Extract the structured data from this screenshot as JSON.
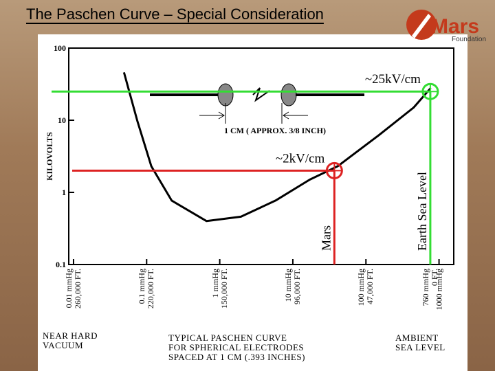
{
  "title": "The Paschen Curve – Special Consideration",
  "logo": {
    "name": "Mars",
    "subtitle": "Foundation"
  },
  "chart_data": {
    "type": "line",
    "ylabel": "KILOVOLTS",
    "xscale": "log",
    "yscale": "log",
    "xlim": [
      0.0086,
      1590
    ],
    "ylim": [
      0.1,
      100
    ],
    "yticks": [
      100,
      10,
      1,
      0.1
    ],
    "xticks": [
      {
        "value": 0.01,
        "label": "0.01 mmHg\n260,000 FT."
      },
      {
        "value": 0.1,
        "label": "0.1 mmHg\n220,000 FT."
      },
      {
        "value": 1,
        "label": "1 mmHg\n150,000 FT."
      },
      {
        "value": 10,
        "label": "10 mmHg\n96,000 FT."
      },
      {
        "value": 100,
        "label": "100 mmHg\n47,000 FT."
      },
      {
        "value": 760,
        "label": "760 mmHg\n0 FT."
      },
      {
        "value": 1000,
        "label": "1000 mmHg"
      }
    ],
    "series": [
      {
        "color": "#000000",
        "x": [
          0.049,
          0.075,
          0.116,
          0.22,
          0.66,
          1.95,
          5.8,
          17,
          41,
          150,
          450,
          770
        ],
        "values": [
          46,
          9.6,
          2.3,
          0.77,
          0.4,
          0.46,
          0.77,
          1.5,
          2.3,
          6.2,
          15,
          28
        ]
      }
    ],
    "annotations": [
      {
        "label": "~25kV/cm",
        "vertical_label": "Earth Sea Level",
        "x": 760,
        "y": 25,
        "color": "#33dd33"
      },
      {
        "label": "~2kV/cm",
        "vertical_label": "Mars",
        "x": 37,
        "y": 2,
        "color": "#dd2222"
      }
    ],
    "diagram_label": "1 CM ( APPROX. 3/8 INCH)",
    "footnotes": [
      "NEAR HARD\nVACUUM",
      "TYPICAL PASCHEN CURVE\nFOR SPHERICAL ELECTRODES\nSPACED AT 1 CM (.393 INCHES)",
      "AMBIENT\nSEA LEVEL"
    ]
  }
}
